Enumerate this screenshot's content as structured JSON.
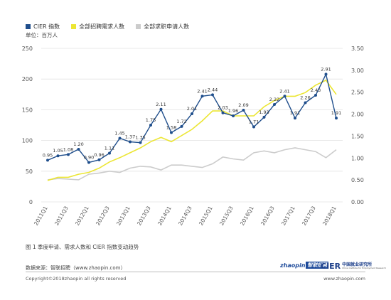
{
  "legend": [
    {
      "label": "CIER 指数",
      "color": "#1f4e8c",
      "type": "square"
    },
    {
      "label": "全部招聘需求人数",
      "color": "#ece634",
      "type": "square"
    },
    {
      "label": "全部求职申请人数",
      "color": "#cccccc",
      "type": "square"
    }
  ],
  "unit_label": "单位：百万人",
  "caption": "图 1 季度申请、需求人数和 CIER 指数变动趋势",
  "source": "数据来源：智联招聘（www.zhaopin.com）",
  "copyright": "Copyright©2018zhaopin all rights reserved",
  "site": "www.zhaopin.com",
  "logos": {
    "zhaopin": "zhaopin",
    "zhaopin_mark": "智联招聘",
    "cier": "CIER",
    "cier_cn": "中国就业研究所",
    "cier_en": "China Institute for Employment Research"
  },
  "colors": {
    "cier": "#1f4e8c",
    "demand": "#ece634",
    "applicants": "#cccccc",
    "grid": "#e2e2e2",
    "axis_text": "#555555"
  },
  "chart_data": {
    "type": "line",
    "categories": [
      "2011Q1",
      "2011Q2",
      "2011Q3",
      "2011Q4",
      "2012Q1",
      "2012Q2",
      "2012Q3",
      "2012Q4",
      "2013Q1",
      "2013Q2",
      "2013Q3",
      "2013Q4",
      "2014Q1",
      "2014Q2",
      "2014Q3",
      "2014Q4",
      "2015Q1",
      "2015Q2",
      "2015Q3",
      "2015Q4",
      "2016Q1",
      "2016Q2",
      "2016Q3",
      "2016Q4",
      "2017Q1",
      "2017Q2",
      "2017Q3",
      "2017Q4",
      "2018Q1"
    ],
    "tick_labels": [
      "2011Q1",
      "2011Q3",
      "2012Q1",
      "2012Q3",
      "2013Q1",
      "2013Q3",
      "2014Q1",
      "2014Q3",
      "2015Q1",
      "2015Q3",
      "2016Q1",
      "2016Q3",
      "2017Q1",
      "2017Q3",
      "2018Q1"
    ],
    "tick_indices": [
      0,
      2,
      4,
      6,
      8,
      10,
      12,
      14,
      16,
      18,
      20,
      22,
      24,
      26,
      28
    ],
    "series": [
      {
        "name": "CIER 指数",
        "axis": "right",
        "values": [
          0.95,
          1.05,
          1.08,
          1.2,
          0.9,
          0.96,
          1.11,
          1.45,
          1.37,
          1.35,
          1.75,
          2.11,
          1.58,
          1.72,
          2.01,
          2.41,
          2.44,
          2.03,
          1.96,
          2.09,
          1.71,
          1.93,
          2.22,
          2.41,
          1.91,
          2.26,
          2.43,
          2.91,
          1.91
        ],
        "labels": [
          "0.95",
          "1.05",
          "1.08",
          "1.20",
          "0.90",
          "0.96",
          "1.11",
          "1.45",
          "1.37",
          "1.35",
          "1.75",
          "2.11",
          "1.58",
          "1.72",
          "2.01",
          "2.41",
          "2.44",
          "2.03",
          "1.96",
          "2.09",
          "1.71",
          "1.93",
          "2.22",
          "2.41",
          "1.91",
          "2.26",
          "2.43",
          "2.91",
          "1.91"
        ]
      },
      {
        "name": "全部招聘需求人数",
        "axis": "left",
        "values": [
          35,
          40,
          40,
          45,
          48,
          55,
          65,
          72,
          80,
          88,
          98,
          105,
          98,
          108,
          118,
          132,
          148,
          148,
          140,
          140,
          140,
          155,
          165,
          172,
          172,
          178,
          190,
          198,
          175
        ]
      },
      {
        "name": "全部求职申请人数",
        "axis": "left",
        "values": [
          36,
          38,
          37,
          36,
          45,
          47,
          50,
          48,
          55,
          58,
          57,
          52,
          60,
          60,
          58,
          56,
          62,
          73,
          70,
          68,
          80,
          83,
          80,
          85,
          88,
          85,
          82,
          72,
          85
        ]
      }
    ],
    "y_left": {
      "ylim": [
        0,
        250
      ],
      "ticks": [
        "0",
        "50",
        "100",
        "150",
        "200",
        "250"
      ]
    },
    "y_right": {
      "ylim": [
        0,
        3.5
      ],
      "ticks": [
        "0.00",
        "0.50",
        "1.00",
        "1.50",
        "2.00",
        "2.50",
        "3.00",
        "3.50"
      ]
    },
    "grid": true,
    "legend_position": "top-left"
  }
}
